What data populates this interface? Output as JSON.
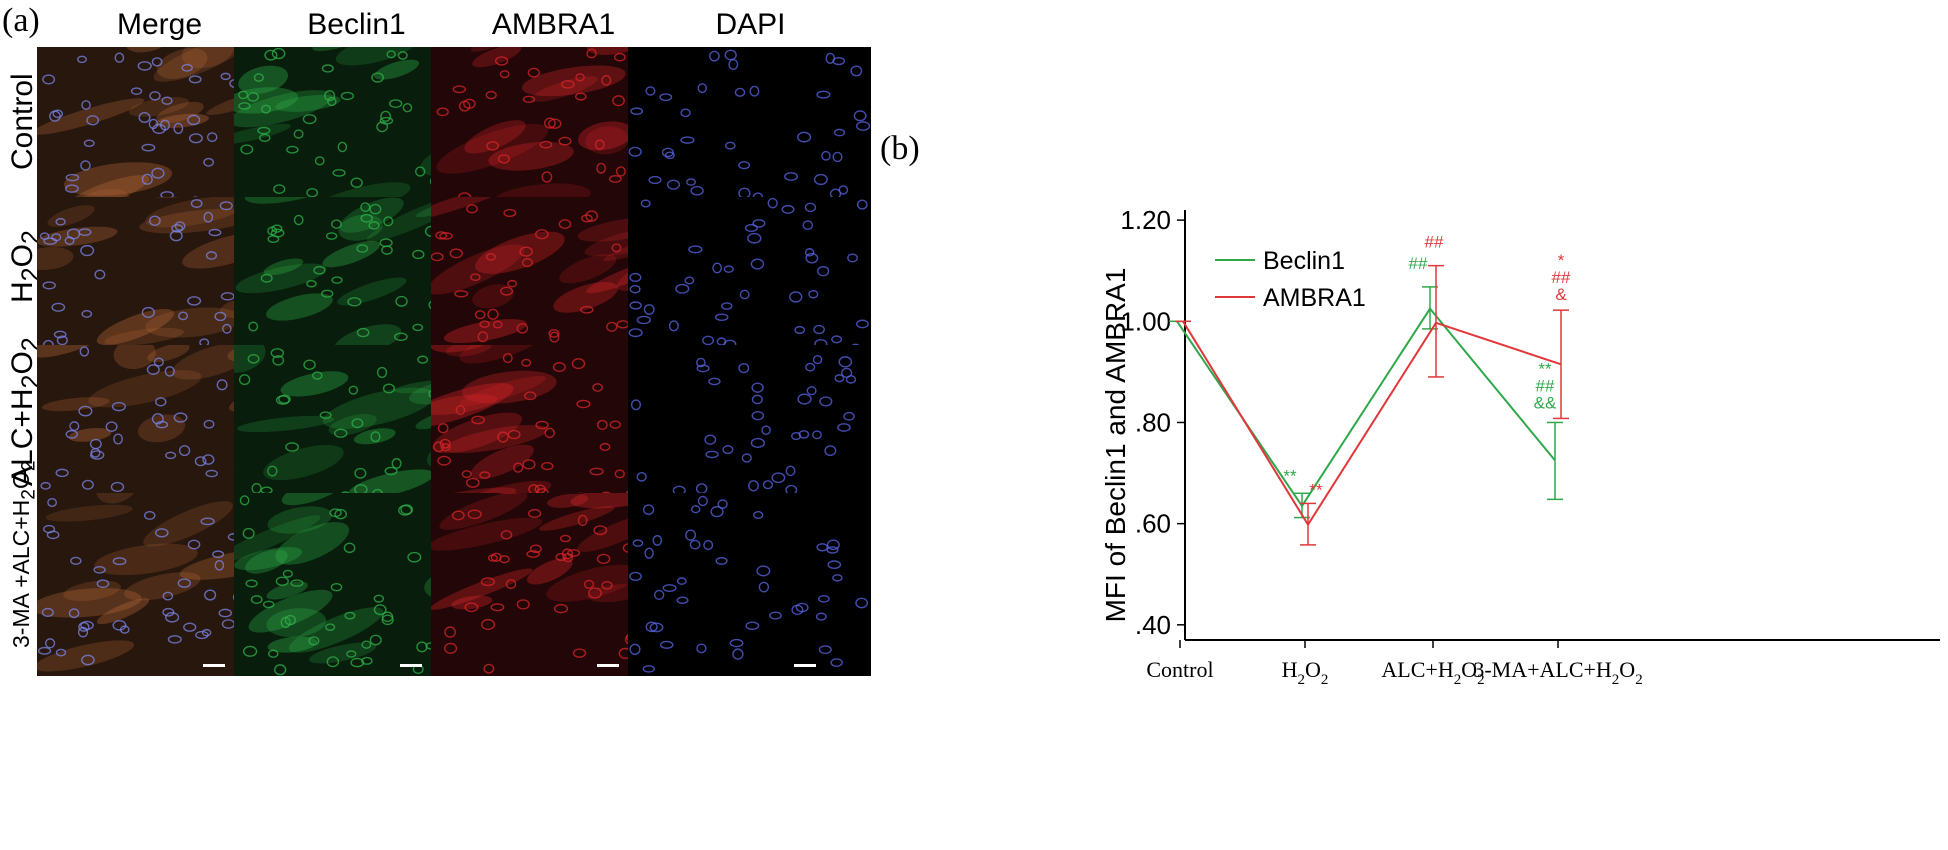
{
  "figure": {
    "panel_a_label": "(a)",
    "panel_b_label": "(b)",
    "columns": [
      "Merge",
      "Beclin1",
      "AMBRA1",
      "DAPI"
    ],
    "rows": [
      {
        "base": "Control",
        "sub": "",
        "suffix": ""
      },
      {
        "base": "H",
        "sub": "2",
        "suffix": "O",
        "sub2": "2"
      },
      {
        "base": "ALC+H",
        "sub": "2",
        "suffix": "O",
        "sub2": "2"
      },
      {
        "base": "3-MA +ALC+H",
        "sub": "2",
        "suffix": "O",
        "sub2": "2"
      }
    ],
    "channel_colors": {
      "Merge": "#b86a3a",
      "Beclin1": "#2fb24a",
      "AMBRA1": "#d8262a",
      "DAPI": "#4b55d6"
    }
  },
  "chart_data": {
    "type": "line",
    "ylabel": "MFI of Beclin1 and AMBRA1",
    "ylim": [
      0.37,
      1.22
    ],
    "yticks": [
      0.4,
      0.6,
      0.8,
      1.0,
      1.2
    ],
    "ytick_labels": [
      ".40",
      ".60",
      ".80",
      "1.00",
      "1.20"
    ],
    "categories": [
      {
        "base": "Control",
        "sub": "",
        "suffix": "",
        "sub2": ""
      },
      {
        "base": "H",
        "sub": "2",
        "suffix": "O",
        "sub2": "2"
      },
      {
        "base": "ALC+H",
        "sub": "2",
        "suffix": "O",
        "sub2": "2"
      },
      {
        "base": "3-MA+ALC+H",
        "sub": "2",
        "suffix": "O",
        "sub2": "2"
      }
    ],
    "series": [
      {
        "name": "Beclin1",
        "color": "#2fa84a",
        "values": [
          1.0,
          0.635,
          1.025,
          0.725
        ],
        "err_low": [
          1.0,
          0.612,
          0.985,
          0.648
        ],
        "err_high": [
          1.0,
          0.66,
          1.068,
          0.8
        ],
        "annotations": [
          "",
          "**",
          "##",
          "**,##,&&"
        ]
      },
      {
        "name": "AMBRA1",
        "color": "#e0373b",
        "values": [
          1.0,
          0.598,
          0.997,
          0.915
        ],
        "err_low": [
          1.0,
          0.558,
          0.89,
          0.808
        ],
        "err_high": [
          1.0,
          0.64,
          1.11,
          1.022
        ],
        "annotations": [
          "",
          "**",
          "##",
          "*,##,&"
        ]
      }
    ],
    "legend": "top-left"
  }
}
